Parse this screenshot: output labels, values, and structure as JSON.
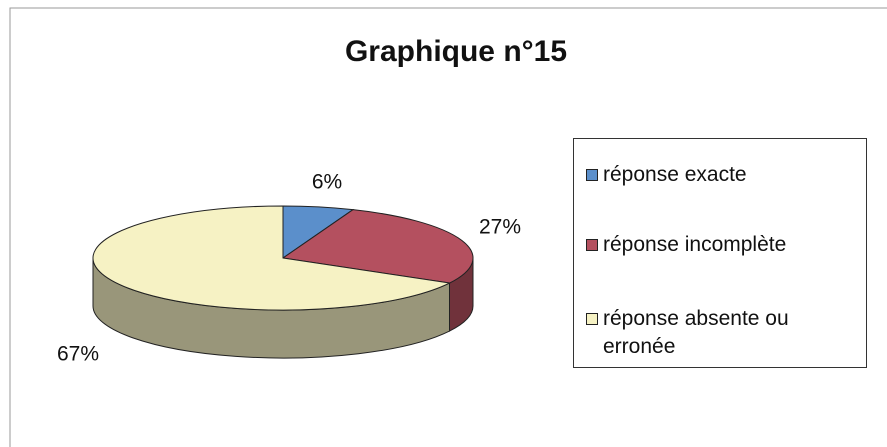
{
  "chart_data": {
    "type": "pie",
    "title": "Graphique n°15",
    "categories": [
      "réponse exacte",
      "réponse incomplète",
      "réponse absente ou erronée"
    ],
    "values": [
      6,
      27,
      67
    ],
    "value_labels": [
      "6%",
      "27%",
      "67%"
    ],
    "colors": [
      "#5b8fcb",
      "#b4505f",
      "#f6f2c4"
    ],
    "legend": "right"
  }
}
